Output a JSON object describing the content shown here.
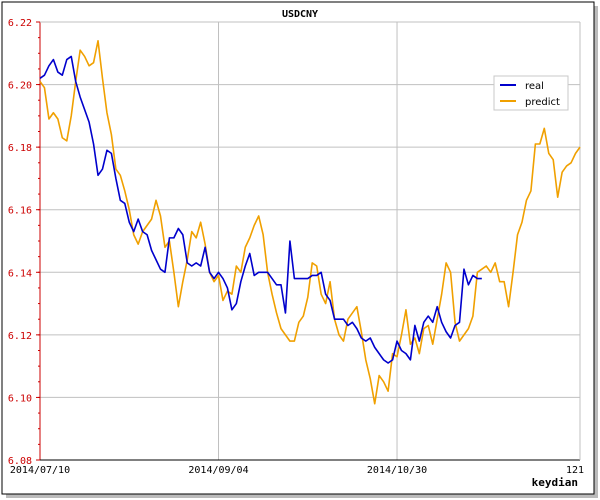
{
  "chart_data": {
    "type": "line",
    "title": "USDCNY",
    "watermark": "keydian",
    "ylim": [
      6.08,
      6.22
    ],
    "y_ticks": [
      6.08,
      6.1,
      6.12,
      6.14,
      6.16,
      6.18,
      6.2,
      6.22
    ],
    "y_tick_labels": [
      "6.08",
      "6.10",
      "6.12",
      "6.14",
      "6.16",
      "6.18",
      "6.20",
      "6.22"
    ],
    "x_range": [
      0,
      121
    ],
    "x_ticks": [
      0,
      40,
      80,
      121
    ],
    "x_tick_labels": [
      "2014/07/10",
      "2014/09/04",
      "2014/10/30",
      "121"
    ],
    "grid": true,
    "legend_position": "top-right",
    "colors": {
      "real": "#0000cc",
      "predict": "#f0a000",
      "y_axis": "#cc0000",
      "grid": "#c0c0c0"
    },
    "series": [
      {
        "name": "real",
        "x": [
          0,
          1,
          2,
          3,
          4,
          5,
          6,
          7,
          8,
          9,
          10,
          11,
          12,
          13,
          14,
          15,
          16,
          17,
          18,
          19,
          20,
          21,
          22,
          23,
          24,
          25,
          26,
          27,
          28,
          29,
          30,
          31,
          32,
          33,
          34,
          35,
          36,
          37,
          38,
          39,
          40,
          41,
          42,
          43,
          44,
          45,
          46,
          47,
          48,
          49,
          50,
          51,
          52,
          53,
          54,
          55,
          56,
          57,
          58,
          59,
          60,
          61,
          62,
          63,
          64,
          65,
          66,
          67,
          68,
          69,
          70,
          71,
          72,
          73,
          74,
          75,
          76,
          77,
          78,
          79,
          80,
          81,
          82,
          83,
          84,
          85,
          86,
          87,
          88,
          89,
          90,
          91,
          92,
          93,
          94,
          95,
          96,
          97,
          98,
          99,
          100,
          101,
          102,
          103
        ],
        "values": [
          6.202,
          6.203,
          6.206,
          6.208,
          6.204,
          6.203,
          6.208,
          6.209,
          6.201,
          6.196,
          6.192,
          6.188,
          6.181,
          6.171,
          6.173,
          6.179,
          6.178,
          6.17,
          6.163,
          6.162,
          6.156,
          6.153,
          6.157,
          6.153,
          6.152,
          6.147,
          6.144,
          6.141,
          6.14,
          6.151,
          6.151,
          6.154,
          6.152,
          6.143,
          6.142,
          6.143,
          6.142,
          6.148,
          6.14,
          6.138,
          6.14,
          6.138,
          6.135,
          6.128,
          6.13,
          6.137,
          6.142,
          6.146,
          6.139,
          6.14,
          6.14,
          6.14,
          6.138,
          6.136,
          6.136,
          6.127,
          6.15,
          6.138,
          6.138,
          6.138,
          6.138,
          6.139,
          6.139,
          6.14,
          6.133,
          6.131,
          6.125,
          6.125,
          6.125,
          6.123,
          6.124,
          6.122,
          6.119,
          6.118,
          6.119,
          6.116,
          6.114,
          6.112,
          6.111,
          6.112,
          6.118,
          6.115,
          6.114,
          6.112,
          6.123,
          6.118,
          6.124,
          6.126,
          6.124,
          6.129,
          6.124,
          6.121,
          6.119,
          6.123,
          6.124,
          6.141,
          6.136,
          6.139,
          6.138,
          6.138,
          null,
          null,
          null,
          null
        ]
      },
      {
        "name": "predict",
        "x": [
          0,
          1,
          2,
          3,
          4,
          5,
          6,
          7,
          8,
          9,
          10,
          11,
          12,
          13,
          14,
          15,
          16,
          17,
          18,
          19,
          20,
          21,
          22,
          23,
          24,
          25,
          26,
          27,
          28,
          29,
          30,
          31,
          32,
          33,
          34,
          35,
          36,
          37,
          38,
          39,
          40,
          41,
          42,
          43,
          44,
          45,
          46,
          47,
          48,
          49,
          50,
          51,
          52,
          53,
          54,
          55,
          56,
          57,
          58,
          59,
          60,
          61,
          62,
          63,
          64,
          65,
          66,
          67,
          68,
          69,
          70,
          71,
          72,
          73,
          74,
          75,
          76,
          77,
          78,
          79,
          80,
          81,
          82,
          83,
          84,
          85,
          86,
          87,
          88,
          89,
          90,
          91,
          92,
          93,
          94,
          95,
          96,
          97,
          98,
          99,
          100,
          101,
          102,
          103,
          104,
          105,
          106,
          107,
          108,
          109,
          110,
          111,
          112,
          113,
          114,
          115,
          116,
          117,
          118,
          119,
          120,
          121
        ],
        "values": [
          6.201,
          6.199,
          6.189,
          6.191,
          6.189,
          6.183,
          6.182,
          6.19,
          6.201,
          6.211,
          6.209,
          6.206,
          6.207,
          6.214,
          6.202,
          6.191,
          6.184,
          6.173,
          6.171,
          6.166,
          6.16,
          6.152,
          6.149,
          6.153,
          6.155,
          6.157,
          6.163,
          6.158,
          6.148,
          6.15,
          6.14,
          6.129,
          6.137,
          6.144,
          6.153,
          6.151,
          6.156,
          6.149,
          6.14,
          6.137,
          6.139,
          6.131,
          6.134,
          6.133,
          6.142,
          6.14,
          6.148,
          6.151,
          6.155,
          6.158,
          6.152,
          6.14,
          6.133,
          6.127,
          6.122,
          6.12,
          6.118,
          6.118,
          6.124,
          6.126,
          6.132,
          6.143,
          6.142,
          6.133,
          6.13,
          6.137,
          6.125,
          6.12,
          6.118,
          6.125,
          6.127,
          6.129,
          6.121,
          6.112,
          6.106,
          6.098,
          6.107,
          6.105,
          6.102,
          6.114,
          6.113,
          6.12,
          6.128,
          6.117,
          6.119,
          6.114,
          6.122,
          6.123,
          6.117,
          6.125,
          6.133,
          6.143,
          6.14,
          6.124,
          6.118,
          6.12,
          6.122,
          6.126,
          6.14,
          6.141,
          6.142,
          6.14,
          6.143,
          6.137,
          6.137,
          6.129,
          6.14,
          6.152,
          6.156,
          6.163,
          6.166,
          6.181,
          6.181,
          6.186,
          6.178,
          6.176,
          6.164,
          6.172,
          6.174,
          6.175,
          6.178,
          6.18
        ]
      }
    ]
  }
}
